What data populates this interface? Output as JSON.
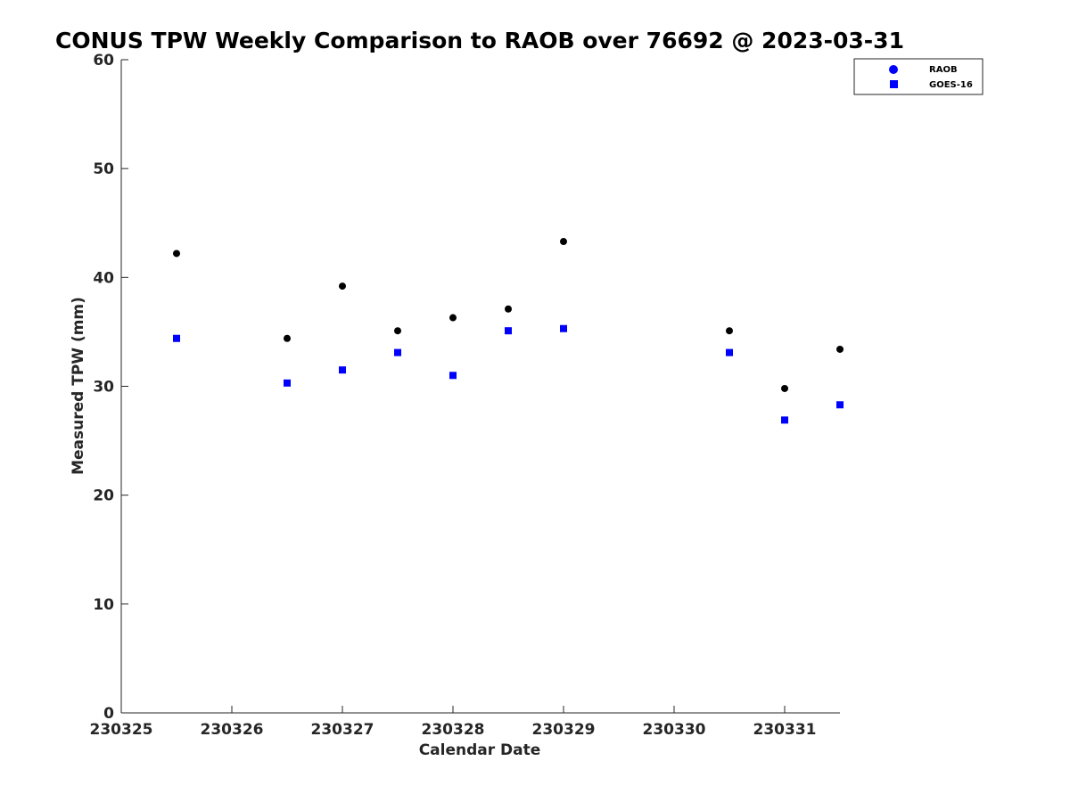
{
  "chart_data": {
    "type": "scatter",
    "title": "CONUS TPW Weekly Comparison to RAOB over 76692 @ 2023-03-31",
    "xlabel": "Calendar Date",
    "ylabel": "Measured TPW (mm)",
    "xlim": [
      "230325",
      "230331.5"
    ],
    "ylim": [
      0,
      60
    ],
    "x_ticks": [
      "230325",
      "230326",
      "230327",
      "230328",
      "230329",
      "230330",
      "230331"
    ],
    "y_ticks": [
      0,
      10,
      20,
      30,
      40,
      50,
      60
    ],
    "grid": false,
    "legend_position": "top-right",
    "series": [
      {
        "name": "RAOB",
        "marker": "circle",
        "color": "#000000",
        "legend_color": "#0000ff",
        "points": [
          {
            "x": "230325.5",
            "y": 42.2
          },
          {
            "x": "230326.5",
            "y": 34.4
          },
          {
            "x": "230327.0",
            "y": 39.2
          },
          {
            "x": "230327.5",
            "y": 35.1
          },
          {
            "x": "230328.0",
            "y": 36.3
          },
          {
            "x": "230328.5",
            "y": 37.1
          },
          {
            "x": "230329.0",
            "y": 43.3
          },
          {
            "x": "230330.5",
            "y": 35.1
          },
          {
            "x": "230331.0",
            "y": 29.8
          },
          {
            "x": "230331.5",
            "y": 33.4
          }
        ]
      },
      {
        "name": "GOES-16",
        "marker": "square",
        "color": "#0000ff",
        "points": [
          {
            "x": "230325.5",
            "y": 34.4
          },
          {
            "x": "230326.5",
            "y": 30.3
          },
          {
            "x": "230327.0",
            "y": 31.5
          },
          {
            "x": "230327.5",
            "y": 33.1
          },
          {
            "x": "230328.0",
            "y": 31.0
          },
          {
            "x": "230328.5",
            "y": 35.1
          },
          {
            "x": "230329.0",
            "y": 35.3
          },
          {
            "x": "230330.5",
            "y": 33.1
          },
          {
            "x": "230331.0",
            "y": 26.9
          },
          {
            "x": "230331.5",
            "y": 28.3
          }
        ]
      }
    ]
  }
}
